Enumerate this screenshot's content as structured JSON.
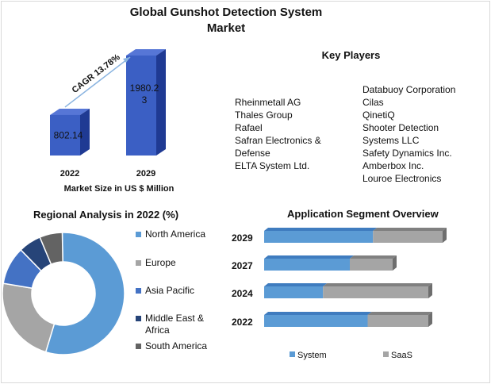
{
  "title": "Global Gunshot Detection System Market",
  "key_players": {
    "title": "Key Players",
    "left": [
      "Rheinmetall AG",
      "Thales Group",
      "Rafael",
      "Safran Electronics &",
      "Defense",
      "ELTA System Ltd."
    ],
    "right": [
      "Databuoy Corporation",
      "Cilas",
      "QinetiQ",
      "Shooter Detection",
      "Systems LLC",
      "Safety Dynamics Inc.",
      "Amberbox Inc.",
      "Louroe Electronics"
    ]
  },
  "chart_data": [
    {
      "type": "bar",
      "title": "",
      "xlabel": "Market Size in US $ Million",
      "categories": [
        "2022",
        "2029"
      ],
      "values": [
        802.14,
        1980.23
      ],
      "value_labels": [
        "802.14",
        "1980.23"
      ],
      "annotation": "CAGR 13.78%",
      "color": "#3b5fc4",
      "ylim": [
        0,
        2200
      ]
    },
    {
      "type": "pie",
      "title": "Regional Analysis in 2022 (%)",
      "categories": [
        "North America",
        "Europe",
        "Asia Pacific",
        "Middle East & Africa",
        "South America"
      ],
      "values": [
        55,
        23,
        10,
        6,
        6
      ],
      "colors": [
        "#5b9bd5",
        "#a5a5a5",
        "#4472c4",
        "#264478",
        "#636363"
      ]
    },
    {
      "type": "bar",
      "orientation": "horizontal-stacked",
      "title": "Application Segment Overview",
      "categories": [
        "2029",
        "2027",
        "2024",
        "2022"
      ],
      "series": [
        {
          "name": "System",
          "values": [
            61,
            48,
            33,
            58
          ],
          "color": "#5b9bd5"
        },
        {
          "name": "SaaS",
          "values": [
            39,
            24,
            59,
            34
          ],
          "color": "#a5a5a5"
        }
      ],
      "xlim": [
        0,
        100
      ]
    }
  ]
}
